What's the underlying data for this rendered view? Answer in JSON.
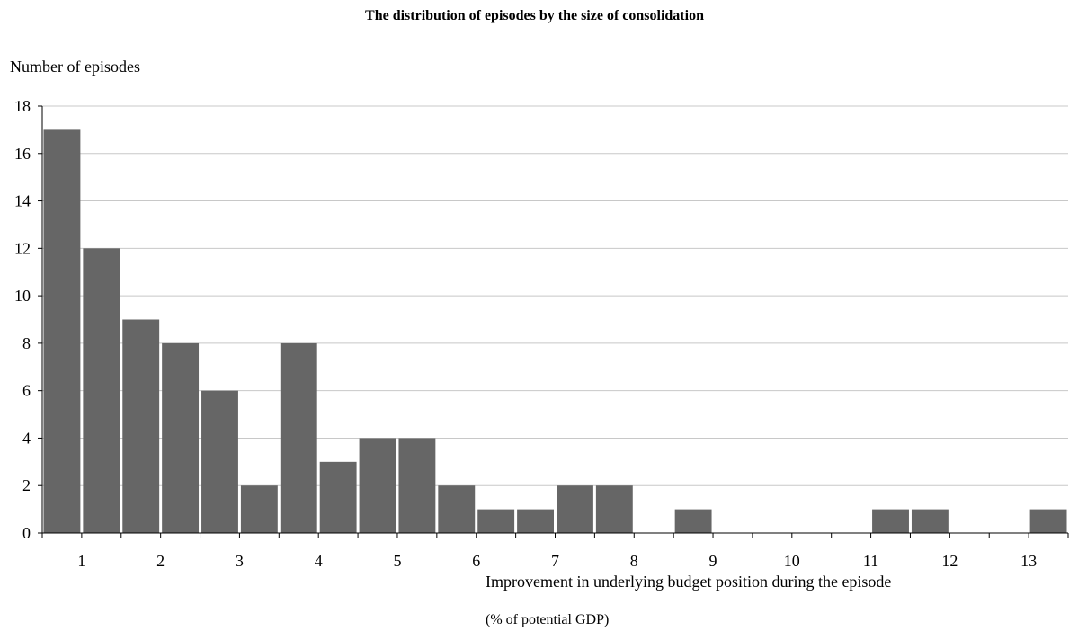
{
  "chart_data": {
    "type": "bar",
    "title": "The distribution of episodes by the size of consolidation",
    "ylabel": "Number of episodes",
    "xlabel_line1": "Improvement in underlying budget position during the episode",
    "xlabel_line2": "(% of potential GDP)",
    "ylim": [
      0,
      18
    ],
    "y_ticks": [
      0,
      2,
      4,
      6,
      8,
      10,
      12,
      14,
      16,
      18
    ],
    "x_tick_labels": [
      "1",
      "2",
      "3",
      "4",
      "5",
      "6",
      "7",
      "8",
      "9",
      "10",
      "11",
      "12",
      "13"
    ],
    "bin_width": 0.5,
    "bins_start": [
      0.5,
      1.0,
      1.5,
      2.0,
      2.5,
      3.0,
      3.5,
      4.0,
      4.5,
      5.0,
      5.5,
      6.0,
      6.5,
      7.0,
      7.5,
      8.0,
      8.5,
      9.0,
      9.5,
      10.0,
      10.5,
      11.0,
      11.5,
      12.0,
      12.5,
      13.0
    ],
    "values": [
      17,
      12,
      9,
      8,
      6,
      2,
      8,
      3,
      4,
      4,
      2,
      1,
      1,
      2,
      2,
      0,
      1,
      0,
      0,
      0,
      0,
      1,
      1,
      0,
      0,
      1
    ],
    "bar_color": "#666666",
    "grid": true
  }
}
